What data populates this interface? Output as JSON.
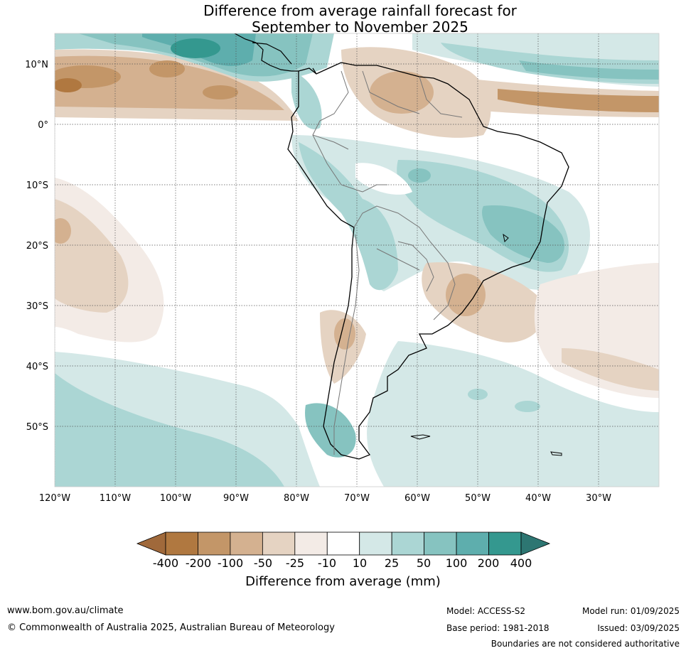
{
  "title": {
    "line1": "Difference from average rainfall forecast for",
    "line2": "September to November 2025"
  },
  "axes": {
    "lat_labels": [
      "10°N",
      "0°",
      "10°S",
      "20°S",
      "30°S",
      "40°S",
      "50°S"
    ],
    "lon_labels": [
      "120°W",
      "110°W",
      "100°W",
      "90°W",
      "80°W",
      "70°W",
      "60°W",
      "50°W",
      "40°W",
      "30°W"
    ]
  },
  "legend": {
    "ticks": [
      "-400",
      "-200",
      "-100",
      "-50",
      "-25",
      "-10",
      "10",
      "25",
      "50",
      "100",
      "200",
      "400"
    ],
    "title": "Difference from average (mm)",
    "colors": [
      "#a0693b",
      "#b07840",
      "#c39668",
      "#d4b190",
      "#e5d3c2",
      "#f3ebe6",
      "#ffffff",
      "#d4e8e7",
      "#abd6d4",
      "#86c3c0",
      "#5eaead",
      "#34988f",
      "#2d7672"
    ]
  },
  "footer": {
    "url": "www.bom.gov.au/climate",
    "copyright": "© Commonwealth of Australia 2025, Australian Bureau of Meteorology",
    "model": "Model: ACCESS-S2",
    "base_period": "Base period: 1981-2018",
    "model_run": "Model run: 01/09/2025",
    "issued": "Issued: 03/09/2025",
    "disclaimer": "Boundaries are not considered authoritative"
  }
}
